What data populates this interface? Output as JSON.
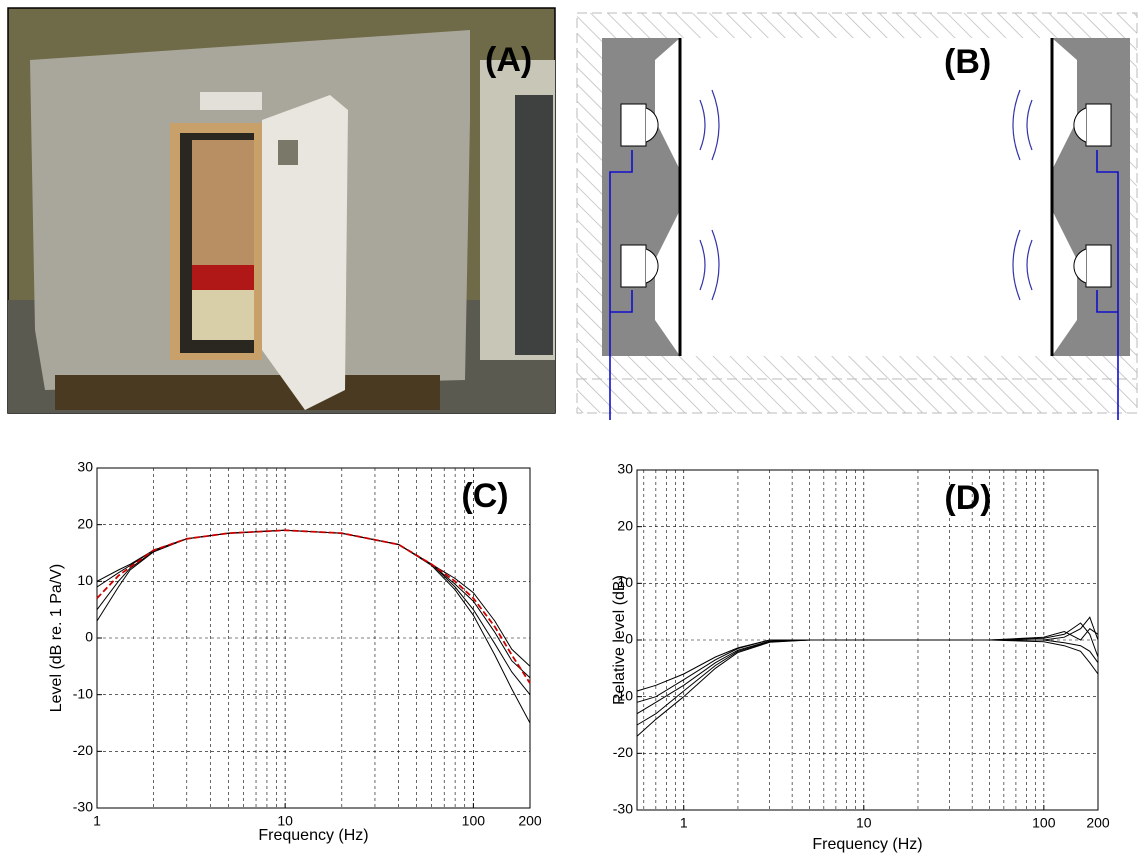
{
  "panels": {
    "a_label": "(A)",
    "b_label": "(B)"
  },
  "chart_data": [
    {
      "type": "line",
      "label": "(C)",
      "x_label": "Frequency (Hz)",
      "y_label": "Level (dB re. 1 Pa/V)",
      "x_scale": "log",
      "grid": true,
      "xlim": [
        1,
        200
      ],
      "xticks": [
        1,
        10,
        100,
        200
      ],
      "ylim": [
        -30,
        30
      ],
      "yticks": [
        -30,
        -20,
        -10,
        0,
        10,
        20,
        30
      ],
      "x": [
        1,
        1.3,
        1.5,
        2,
        3,
        5,
        10,
        20,
        40,
        60,
        80,
        100,
        130,
        160,
        200
      ],
      "series": [
        {
          "color": "#000000",
          "values": [
            10,
            12,
            13,
            15.5,
            17.5,
            18.5,
            19,
            18.5,
            16.5,
            13,
            10.5,
            8,
            3,
            -2,
            -5
          ]
        },
        {
          "color": "#000000",
          "values": [
            9,
            11.5,
            12.8,
            15.5,
            17.5,
            18.5,
            19,
            18.5,
            16.5,
            13,
            9.5,
            6.5,
            1,
            -4,
            -7
          ]
        },
        {
          "color": "#000000",
          "values": [
            5,
            10,
            12.3,
            15.3,
            17.5,
            18.5,
            19,
            18.5,
            16.5,
            13,
            9,
            5,
            -1,
            -6,
            -10
          ]
        },
        {
          "color": "#000000",
          "values": [
            3,
            9,
            12,
            15.2,
            17.5,
            18.5,
            19,
            18.5,
            16.5,
            12.8,
            8.5,
            4,
            -3,
            -9,
            -15
          ]
        },
        {
          "color": "#cc0000",
          "dash": true,
          "values": [
            7,
            11,
            12.5,
            15.5,
            17.5,
            18.5,
            19,
            18.5,
            16.5,
            13,
            10,
            7,
            2,
            -3,
            -8
          ]
        }
      ]
    },
    {
      "type": "line",
      "label": "(D)",
      "x_label": "Frequency (Hz)",
      "y_label": "Relative level (dB)",
      "x_scale": "log",
      "grid": true,
      "xlim": [
        0.55,
        200
      ],
      "xticks": [
        1,
        10,
        100,
        200
      ],
      "ylim": [
        -30,
        30
      ],
      "yticks": [
        -30,
        -20,
        -10,
        0,
        10,
        20,
        30
      ],
      "x": [
        0.55,
        0.7,
        1,
        1.5,
        2,
        3,
        5,
        10,
        50,
        100,
        130,
        160,
        180,
        200
      ],
      "series": [
        {
          "color": "#000000",
          "values": [
            -11,
            -10,
            -7,
            -3.5,
            -1.5,
            0,
            0,
            0,
            0,
            0,
            0.5,
            2,
            4,
            0
          ]
        },
        {
          "color": "#000000",
          "values": [
            -13,
            -11,
            -8,
            -4,
            -1.8,
            -0.2,
            0,
            0,
            0,
            0.3,
            1,
            3,
            1,
            -3
          ]
        },
        {
          "color": "#000000",
          "values": [
            -15,
            -13,
            -9,
            -4.5,
            -2,
            -0.3,
            0,
            0,
            0,
            0,
            -0.5,
            -1,
            -2,
            -4
          ]
        },
        {
          "color": "#000000",
          "values": [
            -17,
            -14,
            -10,
            -5,
            -2.2,
            -0.4,
            0,
            0,
            0,
            -0.3,
            -1,
            -2,
            -4,
            -6
          ]
        },
        {
          "color": "#000000",
          "values": [
            -9,
            -8,
            -6,
            -3,
            -1.4,
            0,
            0,
            0,
            0,
            0.5,
            1.5,
            0,
            2,
            1
          ]
        }
      ]
    }
  ]
}
